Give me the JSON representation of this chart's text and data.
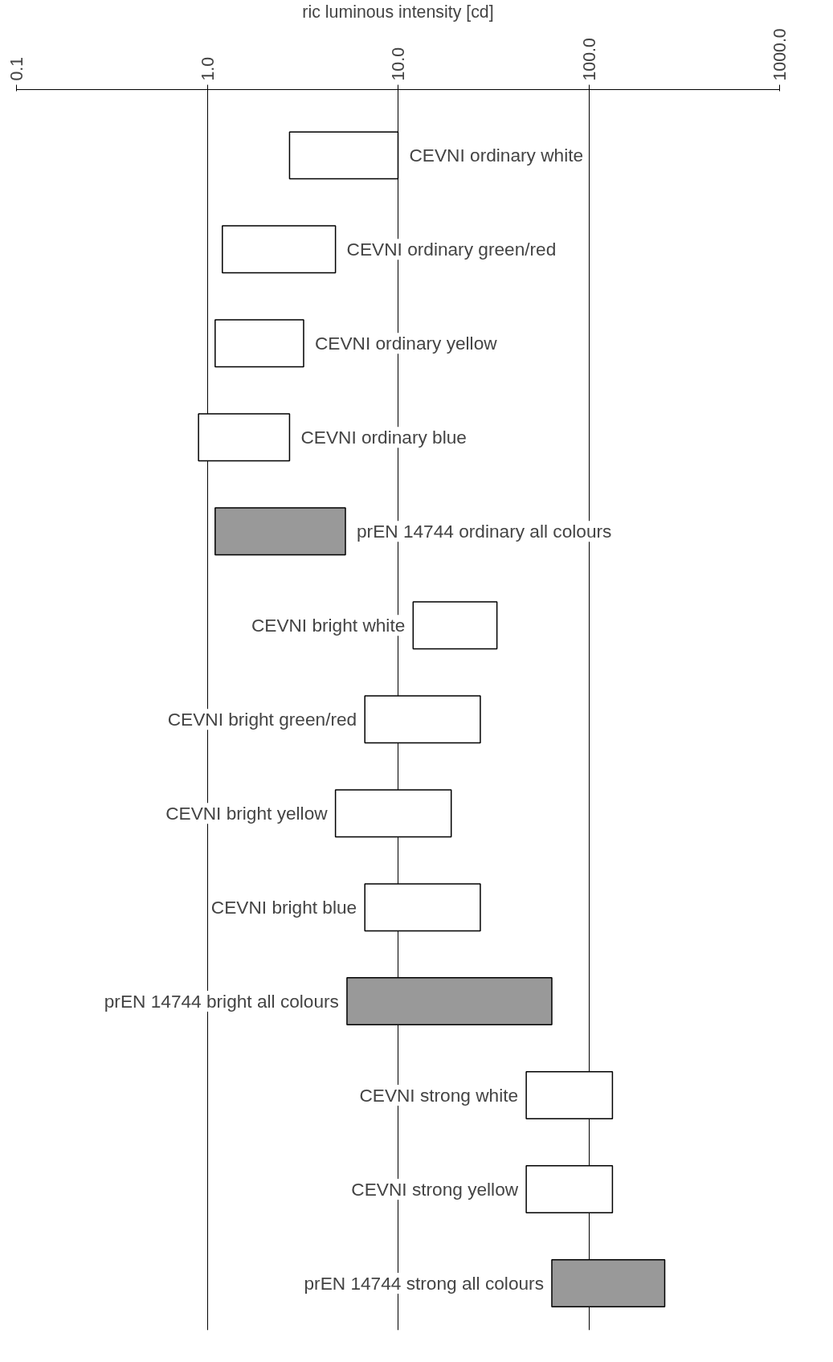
{
  "chart_data": {
    "type": "bar",
    "orientation": "horizontal",
    "log": "x",
    "grid": "x",
    "xlabel": "ric luminous intensity [cd]",
    "categories": [
      "CEVNI ordinary white",
      "CEVNI ordinary green/red",
      "CEVNI ordinary yellow",
      "CEVNI ordinary blue",
      "prEN 14744 ordinary all colours",
      "CEVNI bright white",
      "CEVNI bright green/red",
      "CEVNI bright yellow",
      "CEVNI bright blue",
      "prEN 14744 bright all colours",
      "CEVNI strong white",
      "CEVNI strong yellow",
      "prEN 14744 strong all colours"
    ],
    "base": [
      2.7,
      1.2,
      1.1,
      0.9,
      1.1,
      12,
      6.7,
      4.7,
      6.7,
      5.4,
      47,
      47,
      64
    ],
    "values": [
      7.3,
      3.5,
      2.1,
      1.8,
      4.2,
      21,
      20.3,
      14.3,
      20.3,
      58.6,
      86,
      86,
      186
    ],
    "colors": [
      "#ffffff",
      "#ffffff",
      "#ffffff",
      "#ffffff",
      "#999999",
      "#ffffff",
      "#ffffff",
      "#ffffff",
      "#ffffff",
      "#999999",
      "#ffffff",
      "#ffffff",
      "#999999"
    ],
    "xlim": [
      0.1,
      1000
    ],
    "xticks": [
      0.1,
      {
        "value": 1,
        "label": "1.0"
      },
      {
        "value": 10,
        "label": "10.0"
      },
      {
        "value": 100,
        "label": "100.0"
      },
      {
        "value": 1000,
        "label": "1000.0"
      }
    ]
  }
}
